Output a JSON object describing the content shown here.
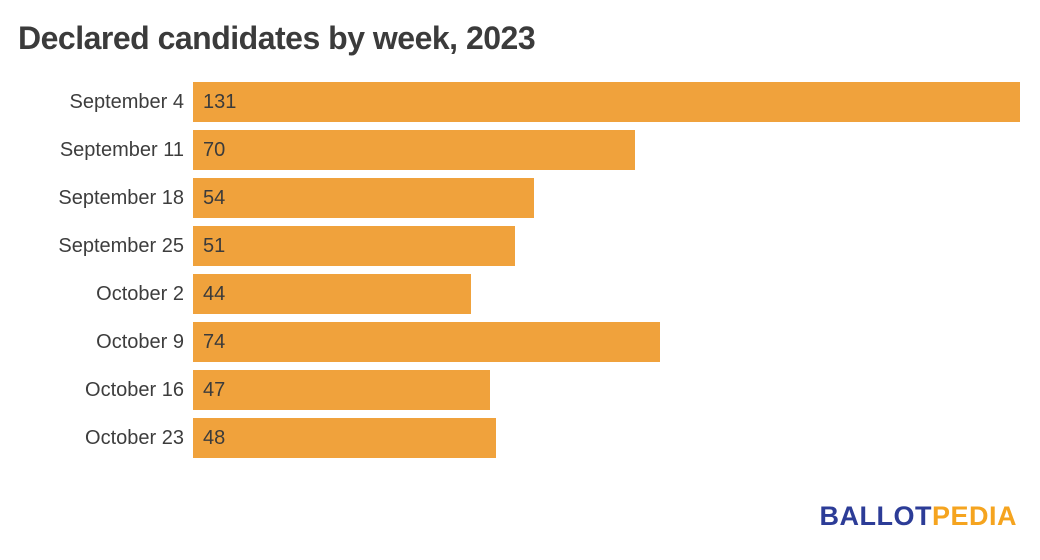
{
  "title": "Declared candidates by week, 2023",
  "chart_data": {
    "type": "bar",
    "orientation": "horizontal",
    "title": "Declared candidates by week, 2023",
    "categories": [
      "September 4",
      "September 11",
      "September 18",
      "September 25",
      "October 2",
      "October 9",
      "October 16",
      "October 23"
    ],
    "values": [
      131,
      70,
      54,
      51,
      44,
      74,
      47,
      48
    ],
    "xlabel": "",
    "ylabel": "",
    "xlim": [
      0,
      131
    ],
    "grid": false,
    "legend": false,
    "value_labels": "inside-left",
    "bar_color": "#f0a23c",
    "label_color": "#3b3b3b"
  },
  "logo": {
    "part1": "BALLOT",
    "part2": "PEDIA",
    "part1_color": "#2c3c97",
    "part2_color": "#f5a41f"
  }
}
